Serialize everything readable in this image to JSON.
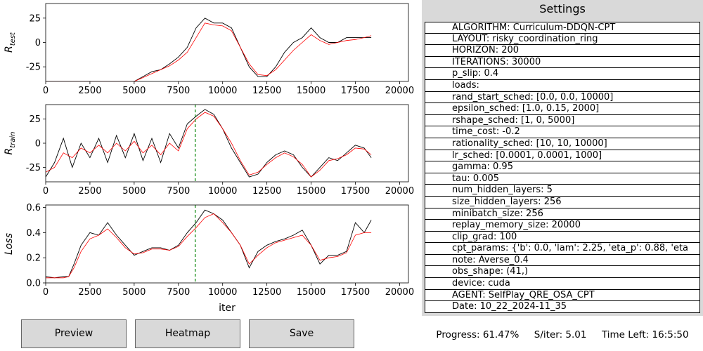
{
  "plots": [
    {
      "name": "r-test-plot",
      "ylabel_base": "R",
      "ylabel_sub": "test",
      "ylim": [
        -40,
        40
      ],
      "yticks": [
        25,
        0,
        -25
      ],
      "xticks": [
        0,
        2500,
        5000,
        7500,
        10000,
        12500,
        15000,
        17500,
        20000
      ],
      "show_xlabel": false
    },
    {
      "name": "r-train-plot",
      "ylabel_base": "R",
      "ylabel_sub": "train",
      "ylim": [
        -40,
        40
      ],
      "yticks": [
        25,
        0,
        -25
      ],
      "xticks": [
        0,
        2500,
        5000,
        7500,
        10000,
        12500,
        15000,
        17500,
        20000
      ],
      "show_xlabel": false
    },
    {
      "name": "loss-plot",
      "ylabel_base": "Loss",
      "ylabel_sub": "",
      "ylim": [
        0,
        0.62
      ],
      "yticks": [
        0.0,
        0.2,
        0.4,
        0.6
      ],
      "xticks": [
        0,
        2500,
        5000,
        7500,
        10000,
        12500,
        15000,
        17500,
        20000
      ],
      "show_xlabel": true
    }
  ],
  "xlabel": "iter",
  "chart_data": [
    {
      "type": "line",
      "ylabel": "R_test",
      "xlim": [
        0,
        20500
      ],
      "ylim": [
        -40,
        40
      ],
      "grid": false,
      "series": [
        {
          "color": "#000000",
          "x": [
            0,
            5000,
            5500,
            6000,
            6500,
            7000,
            7500,
            8000,
            8500,
            9000,
            9500,
            10000,
            10500,
            11000,
            11500,
            12000,
            12500,
            13000,
            13500,
            14000,
            14500,
            15000,
            15500,
            16000,
            16500,
            17000,
            17500,
            18000,
            18400
          ],
          "y": [
            -40,
            -40,
            -35,
            -30,
            -28,
            -22,
            -15,
            -5,
            15,
            25,
            20,
            20,
            15,
            -5,
            -25,
            -35,
            -35,
            -25,
            -10,
            0,
            5,
            15,
            5,
            0,
            0,
            5,
            5,
            5,
            5
          ]
        },
        {
          "color": "#ff0000",
          "x": [
            0,
            5000,
            5500,
            6000,
            6500,
            7000,
            7500,
            8000,
            8500,
            9000,
            9500,
            10000,
            10500,
            11000,
            11500,
            12000,
            12500,
            13000,
            13500,
            14000,
            14500,
            15000,
            15500,
            16000,
            16500,
            17000,
            17500,
            18000,
            18400
          ],
          "y": [
            -40,
            -40,
            -36,
            -32,
            -28,
            -24,
            -18,
            -10,
            5,
            20,
            18,
            17,
            12,
            -5,
            -22,
            -33,
            -34,
            -28,
            -18,
            -8,
            0,
            8,
            2,
            -2,
            0,
            2,
            3,
            5,
            7
          ]
        }
      ],
      "annotations": []
    },
    {
      "type": "line",
      "ylabel": "R_train",
      "xlim": [
        0,
        20500
      ],
      "ylim": [
        -40,
        40
      ],
      "grid": false,
      "series": [
        {
          "color": "#000000",
          "x": [
            0,
            500,
            1000,
            1500,
            2000,
            2500,
            3000,
            3500,
            4000,
            4500,
            5000,
            5500,
            6000,
            6500,
            7000,
            7500,
            8000,
            8500,
            9000,
            9500,
            10000,
            10500,
            11000,
            11500,
            12000,
            12500,
            13000,
            13500,
            14000,
            14500,
            15000,
            15500,
            16000,
            16500,
            17000,
            17500,
            18000,
            18400
          ],
          "y": [
            -35,
            -20,
            5,
            -25,
            0,
            -15,
            5,
            -20,
            8,
            -15,
            10,
            -18,
            5,
            -20,
            10,
            -5,
            20,
            28,
            35,
            30,
            15,
            -5,
            -20,
            -35,
            -32,
            -20,
            -12,
            -8,
            -12,
            -25,
            -35,
            -25,
            -15,
            -18,
            -10,
            -2,
            -5,
            -15
          ]
        },
        {
          "color": "#ff0000",
          "x": [
            0,
            500,
            1000,
            1500,
            2000,
            2500,
            3000,
            3500,
            4000,
            4500,
            5000,
            5500,
            6000,
            6500,
            7000,
            7500,
            8000,
            8500,
            9000,
            9500,
            10000,
            10500,
            11000,
            11500,
            12000,
            12500,
            13000,
            13500,
            14000,
            14500,
            15000,
            15500,
            16000,
            16500,
            17000,
            17500,
            18000,
            18400
          ],
          "y": [
            -30,
            -25,
            -10,
            -15,
            -5,
            -10,
            -2,
            -10,
            0,
            -8,
            2,
            -10,
            -2,
            -12,
            0,
            -8,
            15,
            25,
            32,
            28,
            15,
            0,
            -18,
            -33,
            -30,
            -22,
            -15,
            -10,
            -14,
            -22,
            -35,
            -28,
            -18,
            -16,
            -12,
            -5,
            -6,
            -12
          ]
        }
      ],
      "annotations": [
        {
          "type": "vline",
          "x": 8450,
          "color": "#008000",
          "style": "dashed"
        }
      ]
    },
    {
      "type": "line",
      "ylabel": "Loss",
      "xlabel": "iter",
      "xlim": [
        0,
        20500
      ],
      "ylim": [
        0,
        0.62
      ],
      "grid": false,
      "series": [
        {
          "color": "#000000",
          "x": [
            0,
            500,
            1000,
            1300,
            1600,
            2000,
            2500,
            3000,
            3500,
            4000,
            4500,
            5000,
            5500,
            6000,
            6500,
            7000,
            7500,
            8000,
            8500,
            9000,
            9500,
            10000,
            10500,
            11000,
            11500,
            12000,
            12500,
            13000,
            13500,
            14000,
            14500,
            15000,
            15500,
            16000,
            16500,
            17000,
            17500,
            18000,
            18400
          ],
          "y": [
            0.05,
            0.04,
            0.05,
            0.05,
            0.15,
            0.3,
            0.4,
            0.38,
            0.48,
            0.38,
            0.3,
            0.22,
            0.25,
            0.28,
            0.28,
            0.26,
            0.3,
            0.4,
            0.48,
            0.58,
            0.55,
            0.5,
            0.4,
            0.3,
            0.12,
            0.25,
            0.3,
            0.33,
            0.35,
            0.38,
            0.42,
            0.3,
            0.15,
            0.22,
            0.22,
            0.25,
            0.48,
            0.4,
            0.5
          ]
        },
        {
          "color": "#ff0000",
          "x": [
            0,
            500,
            1000,
            1300,
            1600,
            2000,
            2500,
            3000,
            3500,
            4000,
            4500,
            5000,
            5500,
            6000,
            6500,
            7000,
            7500,
            8000,
            8500,
            9000,
            9500,
            10000,
            10500,
            11000,
            11500,
            12000,
            12500,
            13000,
            13500,
            14000,
            14500,
            15000,
            15500,
            16000,
            16500,
            17000,
            17500,
            18000,
            18400
          ],
          "y": [
            0.04,
            0.04,
            0.04,
            0.05,
            0.12,
            0.25,
            0.35,
            0.38,
            0.43,
            0.36,
            0.28,
            0.23,
            0.24,
            0.27,
            0.27,
            0.26,
            0.29,
            0.37,
            0.44,
            0.52,
            0.55,
            0.48,
            0.4,
            0.3,
            0.15,
            0.22,
            0.28,
            0.32,
            0.34,
            0.36,
            0.38,
            0.3,
            0.18,
            0.2,
            0.21,
            0.24,
            0.38,
            0.4,
            0.4
          ]
        }
      ],
      "annotations": [
        {
          "type": "vline",
          "x": 8450,
          "color": "#008000",
          "style": "dashed"
        }
      ]
    }
  ],
  "settings": {
    "title": "Settings",
    "rows": [
      "ALGORITHM: Curriculum-DDQN-CPT",
      "LAYOUT: risky_coordination_ring",
      "HORIZON: 200",
      "ITERATIONS: 30000",
      "p_slip: 0.4",
      "loads:",
      "rand_start_sched: [0.0, 0.0, 10000]",
      "epsilon_sched: [1.0, 0.15, 2000]",
      "rshape_sched: [1, 0, 5000]",
      "time_cost: -0.2",
      "rationality_sched: [10, 10, 10000]",
      "lr_sched: [0.0001, 0.0001, 1000]",
      "gamma: 0.95",
      "tau: 0.005",
      "num_hidden_layers: 5",
      "size_hidden_layers: 256",
      "minibatch_size: 256",
      "replay_memory_size: 20000",
      "clip_grad: 100",
      "cpt_params: {'b': 0.0, 'lam': 2.25, 'eta_p': 0.88, 'eta",
      "note: Averse_0.4",
      "obs_shape: (41,)",
      "device: cuda",
      "AGENT: SelfPlay_QRE_OSA_CPT",
      "Date: 10_22_2024-11_35"
    ]
  },
  "buttons": {
    "preview": "Preview",
    "heatmap": "Heatmap",
    "save": "Save"
  },
  "status": "Progress: 61.47%     S/iter: 5.01     Time Left: 16:5:50"
}
